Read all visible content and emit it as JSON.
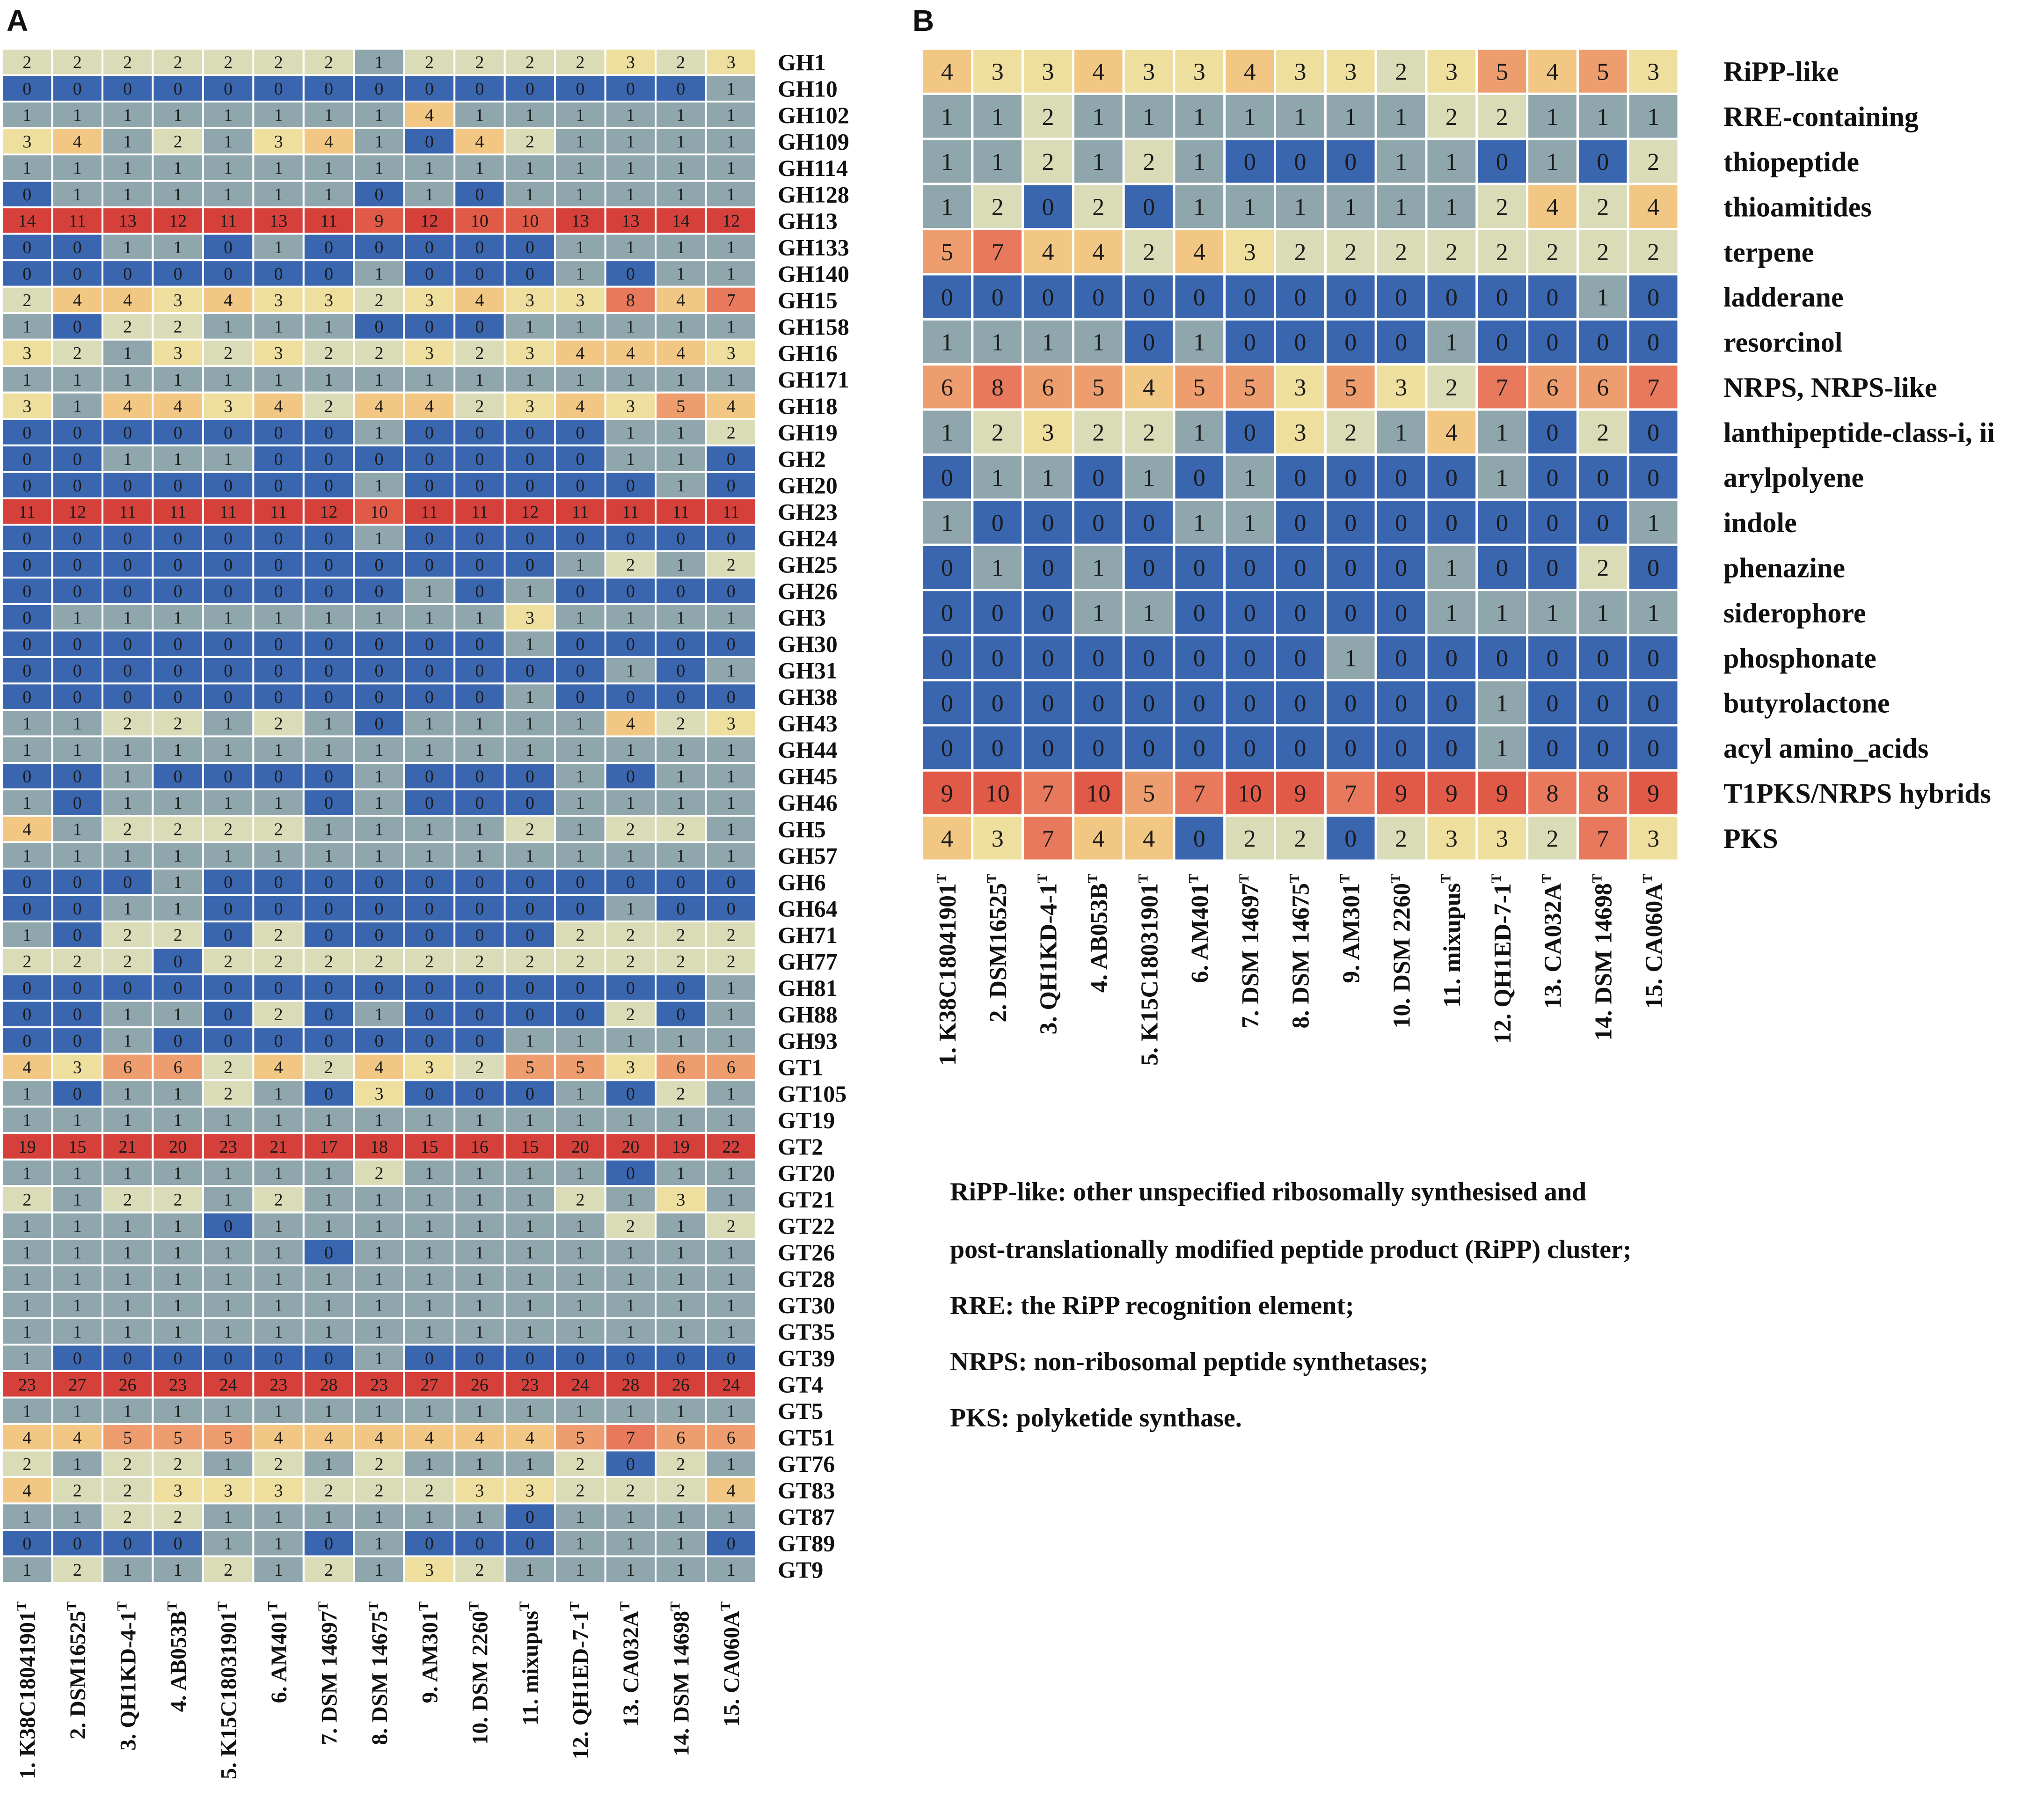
{
  "chart_data": [
    {
      "type": "heatmap",
      "panel": "A",
      "columns": [
        "1. K38C18041901|T",
        "2. DSM16525|T",
        "3. QH1KD-4-1|T",
        "4. AB053B|T",
        "5. K15C18031901|T",
        "6. AM401|T",
        "7. DSM 14697|T",
        "8. DSM 14675|T",
        "9. AM301|T",
        "10. DSM 2260|T",
        "11. mixupus|T",
        "12. QH1ED-7-1|T",
        "13. CA032A|T",
        "14. DSM 14698|T",
        "15. CA060A|T"
      ],
      "rows": [
        "GH1",
        "GH10",
        "GH102",
        "GH109",
        "GH114",
        "GH128",
        "GH13",
        "GH133",
        "GH140",
        "GH15",
        "GH158",
        "GH16",
        "GH171",
        "GH18",
        "GH19",
        "GH2",
        "GH20",
        "GH23",
        "GH24",
        "GH25",
        "GH26",
        "GH3",
        "GH30",
        "GH31",
        "GH38",
        "GH43",
        "GH44",
        "GH45",
        "GH46",
        "GH5",
        "GH57",
        "GH6",
        "GH64",
        "GH71",
        "GH77",
        "GH81",
        "GH88",
        "GH93",
        "GT1",
        "GT105",
        "GT19",
        "GT2",
        "GT20",
        "GT21",
        "GT22",
        "GT26",
        "GT28",
        "GT30",
        "GT35",
        "GT39",
        "GT4",
        "GT5",
        "GT51",
        "GT76",
        "GT83",
        "GT87",
        "GT89",
        "GT9"
      ],
      "values": [
        [
          2,
          2,
          2,
          2,
          2,
          2,
          2,
          1,
          2,
          2,
          2,
          2,
          3,
          2,
          3
        ],
        [
          0,
          0,
          0,
          0,
          0,
          0,
          0,
          0,
          0,
          0,
          0,
          0,
          0,
          0,
          1
        ],
        [
          1,
          1,
          1,
          1,
          1,
          1,
          1,
          1,
          4,
          1,
          1,
          1,
          1,
          1,
          1
        ],
        [
          3,
          4,
          1,
          2,
          1,
          3,
          4,
          1,
          0,
          4,
          2,
          1,
          1,
          1,
          1
        ],
        [
          1,
          1,
          1,
          1,
          1,
          1,
          1,
          1,
          1,
          1,
          1,
          1,
          1,
          1,
          1
        ],
        [
          0,
          1,
          1,
          1,
          1,
          1,
          1,
          0,
          1,
          0,
          1,
          1,
          1,
          1,
          1
        ],
        [
          14,
          11,
          13,
          12,
          11,
          13,
          11,
          9,
          12,
          10,
          10,
          13,
          13,
          14,
          12
        ],
        [
          0,
          0,
          1,
          1,
          0,
          1,
          0,
          0,
          0,
          0,
          0,
          1,
          1,
          1,
          1
        ],
        [
          0,
          0,
          0,
          0,
          0,
          0,
          0,
          1,
          0,
          0,
          0,
          1,
          0,
          1,
          1
        ],
        [
          2,
          4,
          4,
          3,
          4,
          3,
          3,
          2,
          3,
          4,
          3,
          3,
          8,
          4,
          7
        ],
        [
          1,
          0,
          2,
          2,
          1,
          1,
          1,
          0,
          0,
          0,
          1,
          1,
          1,
          1,
          1
        ],
        [
          3,
          2,
          1,
          3,
          2,
          3,
          2,
          2,
          3,
          2,
          3,
          4,
          4,
          4,
          3
        ],
        [
          1,
          1,
          1,
          1,
          1,
          1,
          1,
          1,
          1,
          1,
          1,
          1,
          1,
          1,
          1
        ],
        [
          3,
          1,
          4,
          4,
          3,
          4,
          2,
          4,
          4,
          2,
          3,
          4,
          3,
          5,
          4
        ],
        [
          0,
          0,
          0,
          0,
          0,
          0,
          0,
          1,
          0,
          0,
          0,
          0,
          1,
          1,
          2
        ],
        [
          0,
          0,
          1,
          1,
          1,
          0,
          0,
          0,
          0,
          0,
          0,
          0,
          1,
          1,
          0
        ],
        [
          0,
          0,
          0,
          0,
          0,
          0,
          0,
          1,
          0,
          0,
          0,
          0,
          0,
          1,
          0
        ],
        [
          11,
          12,
          11,
          11,
          11,
          11,
          12,
          10,
          11,
          11,
          12,
          11,
          11,
          11,
          11
        ],
        [
          0,
          0,
          0,
          0,
          0,
          0,
          0,
          1,
          0,
          0,
          0,
          0,
          0,
          0,
          0
        ],
        [
          0,
          0,
          0,
          0,
          0,
          0,
          0,
          0,
          0,
          0,
          0,
          1,
          2,
          1,
          2
        ],
        [
          0,
          0,
          0,
          0,
          0,
          0,
          0,
          0,
          1,
          0,
          1,
          0,
          0,
          0,
          0
        ],
        [
          0,
          1,
          1,
          1,
          1,
          1,
          1,
          1,
          1,
          1,
          3,
          1,
          1,
          1,
          1
        ],
        [
          0,
          0,
          0,
          0,
          0,
          0,
          0,
          0,
          0,
          0,
          1,
          0,
          0,
          0,
          0
        ],
        [
          0,
          0,
          0,
          0,
          0,
          0,
          0,
          0,
          0,
          0,
          0,
          0,
          1,
          0,
          1
        ],
        [
          0,
          0,
          0,
          0,
          0,
          0,
          0,
          0,
          0,
          0,
          1,
          0,
          0,
          0,
          0
        ],
        [
          1,
          1,
          2,
          2,
          1,
          2,
          1,
          0,
          1,
          1,
          1,
          1,
          4,
          2,
          3
        ],
        [
          1,
          1,
          1,
          1,
          1,
          1,
          1,
          1,
          1,
          1,
          1,
          1,
          1,
          1,
          1
        ],
        [
          0,
          0,
          1,
          0,
          0,
          0,
          0,
          1,
          0,
          0,
          0,
          1,
          0,
          1,
          1
        ],
        [
          1,
          0,
          1,
          1,
          1,
          1,
          0,
          1,
          0,
          0,
          0,
          1,
          1,
          1,
          1
        ],
        [
          4,
          1,
          2,
          2,
          2,
          2,
          1,
          1,
          1,
          1,
          2,
          1,
          2,
          2,
          1
        ],
        [
          1,
          1,
          1,
          1,
          1,
          1,
          1,
          1,
          1,
          1,
          1,
          1,
          1,
          1,
          1
        ],
        [
          0,
          0,
          0,
          1,
          0,
          0,
          0,
          0,
          0,
          0,
          0,
          0,
          0,
          0,
          0
        ],
        [
          0,
          0,
          1,
          1,
          0,
          0,
          0,
          0,
          0,
          0,
          0,
          0,
          1,
          0,
          0
        ],
        [
          1,
          0,
          2,
          2,
          0,
          2,
          0,
          0,
          0,
          0,
          0,
          2,
          2,
          2,
          2
        ],
        [
          2,
          2,
          2,
          0,
          2,
          2,
          2,
          2,
          2,
          2,
          2,
          2,
          2,
          2,
          2
        ],
        [
          0,
          0,
          0,
          0,
          0,
          0,
          0,
          0,
          0,
          0,
          0,
          0,
          0,
          0,
          1
        ],
        [
          0,
          0,
          1,
          1,
          0,
          2,
          0,
          1,
          0,
          0,
          0,
          0,
          2,
          0,
          1
        ],
        [
          0,
          0,
          1,
          0,
          0,
          0,
          0,
          0,
          0,
          0,
          1,
          1,
          1,
          1,
          1
        ],
        [
          4,
          3,
          6,
          6,
          2,
          4,
          2,
          4,
          3,
          2,
          5,
          5,
          3,
          6,
          6
        ],
        [
          1,
          0,
          1,
          1,
          2,
          1,
          0,
          3,
          0,
          0,
          0,
          1,
          0,
          2,
          1
        ],
        [
          1,
          1,
          1,
          1,
          1,
          1,
          1,
          1,
          1,
          1,
          1,
          1,
          1,
          1,
          1
        ],
        [
          19,
          15,
          21,
          20,
          23,
          21,
          17,
          18,
          15,
          16,
          15,
          20,
          20,
          19,
          22
        ],
        [
          1,
          1,
          1,
          1,
          1,
          1,
          1,
          2,
          1,
          1,
          1,
          1,
          0,
          1,
          1
        ],
        [
          2,
          1,
          2,
          2,
          1,
          2,
          1,
          1,
          1,
          1,
          1,
          2,
          1,
          3,
          1
        ],
        [
          1,
          1,
          1,
          1,
          0,
          1,
          1,
          1,
          1,
          1,
          1,
          1,
          2,
          1,
          2
        ],
        [
          1,
          1,
          1,
          1,
          1,
          1,
          0,
          1,
          1,
          1,
          1,
          1,
          1,
          1,
          1
        ],
        [
          1,
          1,
          1,
          1,
          1,
          1,
          1,
          1,
          1,
          1,
          1,
          1,
          1,
          1,
          1
        ],
        [
          1,
          1,
          1,
          1,
          1,
          1,
          1,
          1,
          1,
          1,
          1,
          1,
          1,
          1,
          1
        ],
        [
          1,
          1,
          1,
          1,
          1,
          1,
          1,
          1,
          1,
          1,
          1,
          1,
          1,
          1,
          1
        ],
        [
          1,
          0,
          0,
          0,
          0,
          0,
          0,
          1,
          0,
          0,
          0,
          0,
          0,
          0,
          0
        ],
        [
          23,
          27,
          26,
          23,
          24,
          23,
          28,
          23,
          27,
          26,
          23,
          24,
          28,
          26,
          24
        ],
        [
          1,
          1,
          1,
          1,
          1,
          1,
          1,
          1,
          1,
          1,
          1,
          1,
          1,
          1,
          1
        ],
        [
          4,
          4,
          5,
          5,
          5,
          4,
          4,
          4,
          4,
          4,
          4,
          5,
          7,
          6,
          6
        ],
        [
          2,
          1,
          2,
          2,
          1,
          2,
          1,
          2,
          1,
          1,
          1,
          2,
          0,
          2,
          1
        ],
        [
          4,
          2,
          2,
          3,
          3,
          3,
          2,
          2,
          2,
          3,
          3,
          2,
          2,
          2,
          4
        ],
        [
          1,
          1,
          2,
          2,
          1,
          1,
          1,
          1,
          1,
          1,
          0,
          1,
          1,
          1,
          1
        ],
        [
          0,
          0,
          0,
          0,
          1,
          1,
          0,
          1,
          0,
          0,
          0,
          1,
          1,
          1,
          0
        ],
        [
          1,
          2,
          1,
          1,
          2,
          1,
          2,
          1,
          3,
          2,
          1,
          1,
          1,
          1,
          1
        ]
      ]
    },
    {
      "type": "heatmap",
      "panel": "B",
      "columns": [
        "1. K38C18041901|T",
        "2. DSM16525|T",
        "3. QH1KD-4-1|T",
        "4. AB053B|T",
        "5. K15C18031901|T",
        "6. AM401|T",
        "7. DSM 14697|T",
        "8. DSM 14675|T",
        "9. AM301|T",
        "10. DSM 2260|T",
        "11. mixupus|T",
        "12. QH1ED-7-1|T",
        "13. CA032A|T",
        "14. DSM 14698|T",
        "15. CA060A|T"
      ],
      "rows": [
        "RiPP-like",
        "RRE-containing",
        "thiopeptide",
        "thioamitides",
        "terpene",
        "ladderane",
        "resorcinol",
        "NRPS, NRPS-like",
        "lanthipeptide-class-i, ii",
        "arylpolyene",
        "indole",
        "phenazine",
        "siderophore",
        "phosphonate",
        "butyrolactone",
        "acyl amino_acids",
        "T1PKS/NRPS hybrids",
        "PKS"
      ],
      "values": [
        [
          4,
          3,
          3,
          4,
          3,
          3,
          4,
          3,
          3,
          2,
          3,
          5,
          4,
          5,
          3
        ],
        [
          1,
          1,
          2,
          1,
          1,
          1,
          1,
          1,
          1,
          1,
          2,
          2,
          1,
          1,
          1
        ],
        [
          1,
          1,
          2,
          1,
          2,
          1,
          0,
          0,
          0,
          1,
          1,
          0,
          1,
          0,
          2
        ],
        [
          1,
          2,
          0,
          2,
          0,
          1,
          1,
          1,
          1,
          1,
          1,
          2,
          4,
          2,
          4
        ],
        [
          5,
          7,
          4,
          4,
          2,
          4,
          3,
          2,
          2,
          2,
          2,
          2,
          2,
          2,
          2
        ],
        [
          0,
          0,
          0,
          0,
          0,
          0,
          0,
          0,
          0,
          0,
          0,
          0,
          0,
          1,
          0
        ],
        [
          1,
          1,
          1,
          1,
          0,
          1,
          0,
          0,
          0,
          0,
          1,
          0,
          0,
          0,
          0
        ],
        [
          6,
          8,
          6,
          5,
          4,
          5,
          5,
          3,
          5,
          3,
          2,
          7,
          6,
          6,
          7
        ],
        [
          1,
          2,
          3,
          2,
          2,
          1,
          0,
          3,
          2,
          1,
          4,
          1,
          0,
          2,
          0
        ],
        [
          0,
          1,
          1,
          0,
          1,
          0,
          1,
          0,
          0,
          0,
          0,
          1,
          0,
          0,
          0
        ],
        [
          1,
          0,
          0,
          0,
          0,
          1,
          1,
          0,
          0,
          0,
          0,
          0,
          0,
          0,
          1
        ],
        [
          0,
          1,
          0,
          1,
          0,
          0,
          0,
          0,
          0,
          0,
          1,
          0,
          0,
          2,
          0
        ],
        [
          0,
          0,
          0,
          1,
          1,
          0,
          0,
          0,
          0,
          0,
          1,
          1,
          1,
          1,
          1
        ],
        [
          0,
          0,
          0,
          0,
          0,
          0,
          0,
          0,
          1,
          0,
          0,
          0,
          0,
          0,
          0
        ],
        [
          0,
          0,
          0,
          0,
          0,
          0,
          0,
          0,
          0,
          0,
          0,
          1,
          0,
          0,
          0
        ],
        [
          0,
          0,
          0,
          0,
          0,
          0,
          0,
          0,
          0,
          0,
          0,
          1,
          0,
          0,
          0
        ],
        [
          9,
          10,
          7,
          10,
          5,
          7,
          10,
          9,
          7,
          9,
          9,
          9,
          8,
          8,
          9
        ],
        [
          4,
          3,
          7,
          4,
          4,
          0,
          2,
          2,
          0,
          2,
          3,
          3,
          2,
          7,
          3
        ]
      ]
    }
  ],
  "labels": {
    "panel_a": "A",
    "panel_b": "B"
  },
  "legend": [
    "RiPP-like: other unspecified ribosomally synthesised and",
    "post-translationally modified peptide product (RiPP) cluster;",
    "RRE: the RiPP recognition element;",
    "NRPS: non-ribosomal peptide synthetases;",
    "PKS: polyketide synthase."
  ],
  "colors": {
    "c0": "#3a66b0",
    "c1": "#8fa6ad",
    "c2": "#d9dcb6",
    "c3": "#eedf9e",
    "c4": "#f2c783",
    "c5": "#ee9e6e",
    "c6": "#e8795d",
    "c7": "#e05a47",
    "c8": "#d6403a",
    "grid": "#ffffff"
  }
}
